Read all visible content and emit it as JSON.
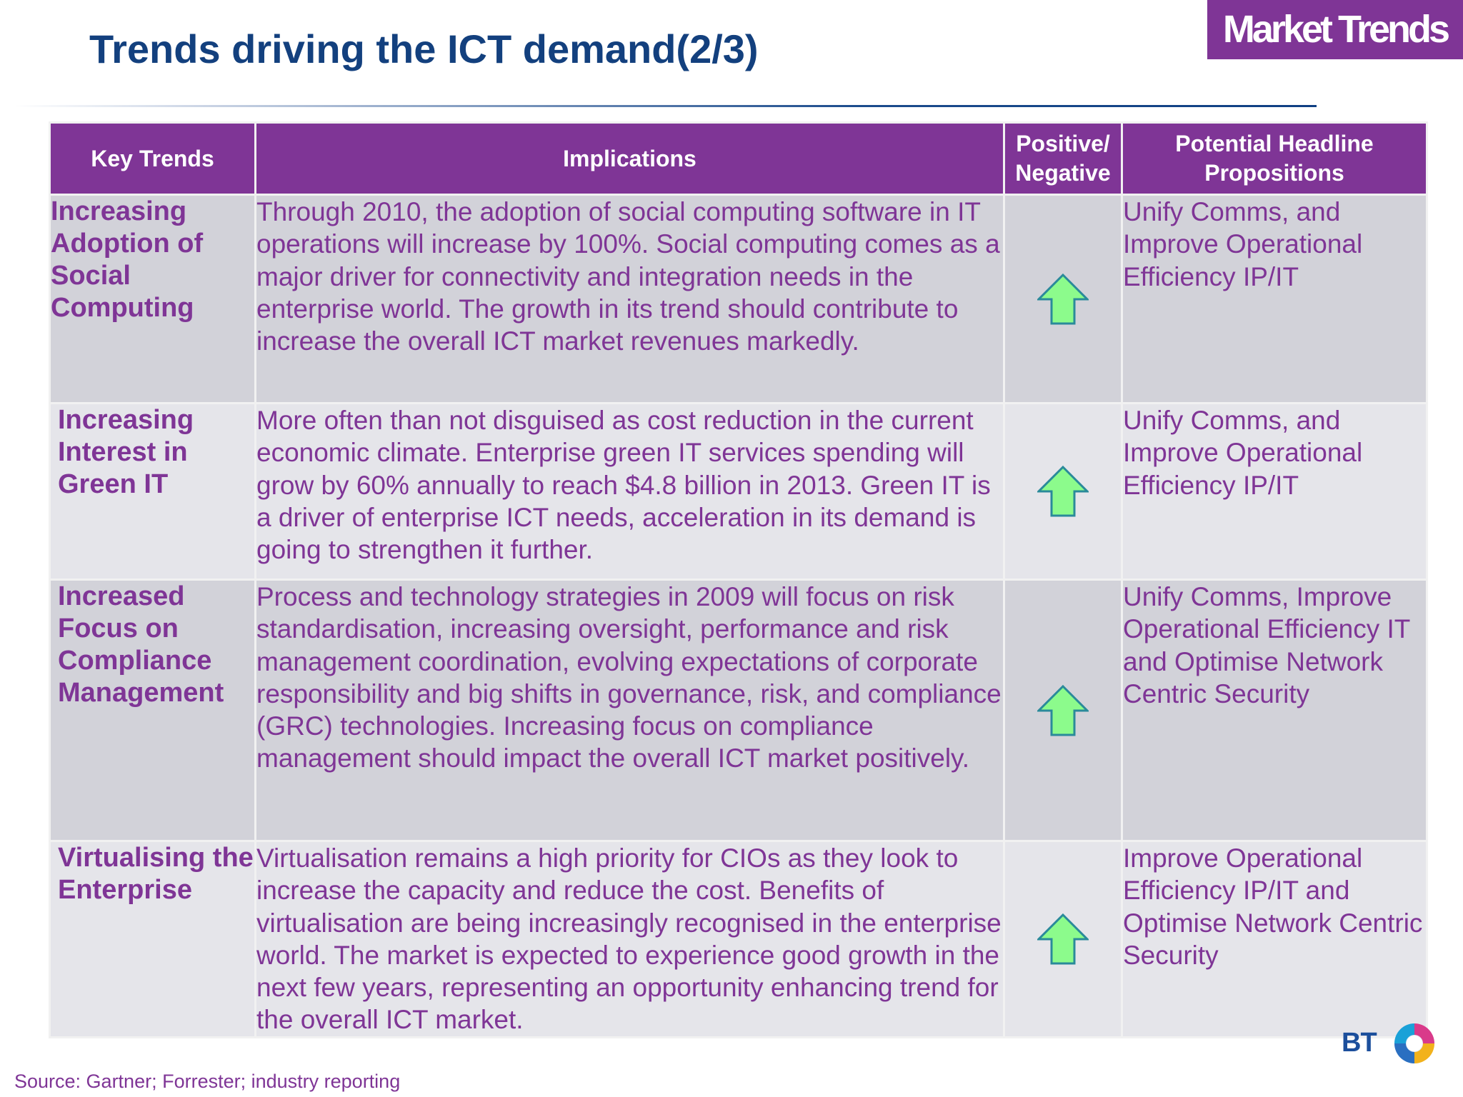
{
  "slide": {
    "title": "Trends driving the ICT demand(2/3)",
    "section_badge": "Market Trends",
    "source": "Source: Gartner; Forrester; industry reporting",
    "logo_text": "BT"
  },
  "colors": {
    "title": "#13407e",
    "accent_purple": "#7f3596",
    "row_dark": "#d2d2d9",
    "row_light": "#e5e5ea",
    "arrow_fill": "#8cfb8c",
    "arrow_stroke": "#2a8a9a"
  },
  "table": {
    "headers": {
      "key_trends": "Key Trends",
      "implications": "Implications",
      "positive_negative_1": "Positive/",
      "positive_negative_2": "Negative",
      "propositions_1": "Potential Headline",
      "propositions_2": "Propositions"
    },
    "rows": [
      {
        "trend": "Increasing Adoption of Social Computing",
        "implication": "Through 2010, the adoption of social computing software in IT operations will increase by 100%. Social computing comes as a major driver for connectivity and integration needs in the enterprise world. The growth in its trend should contribute to increase the overall ICT market revenues markedly.",
        "impact": "positive",
        "impact_icon": "green-up-arrow-icon",
        "proposition": "Unify Comms,  and Improve Operational Efficiency IP/IT"
      },
      {
        "trend": "Increasing Interest in Green IT",
        "implication": "More often than not disguised as cost reduction in the current economic climate. Enterprise green IT services spending will grow by 60% annually to reach $4.8 billion in 2013. Green IT is a driver of enterprise ICT needs, acceleration in its demand is going to strengthen it further.",
        "impact": "positive",
        "impact_icon": "green-up-arrow-icon",
        "proposition": "Unify Comms,  and Improve Operational Efficiency IP/IT"
      },
      {
        "trend": "Increased Focus on Compliance Management",
        "implication": "Process and technology strategies in 2009 will focus on risk standardisation, increasing oversight, performance and risk management coordination, evolving expectations of corporate responsibility and big shifts in governance, risk, and compliance (GRC) technologies. Increasing focus on compliance management should impact the overall ICT market positively.",
        "impact": "positive",
        "impact_icon": "green-up-arrow-icon",
        "proposition": "Unify Comms, Improve Operational Efficiency IT and Optimise Network Centric Security"
      },
      {
        "trend": "Virtualising the Enterprise",
        "implication": "Virtualisation remains a high priority for CIOs as they look to increase the capacity and reduce the cost. Benefits of virtualisation are being increasingly recognised in the enterprise world. The market is expected to experience good growth in the next few years, representing an opportunity enhancing trend for the overall ICT market.",
        "impact": "positive",
        "impact_icon": "green-up-arrow-icon",
        "proposition": "Improve Operational Efficiency IP/IT and Optimise Network Centric Security"
      }
    ]
  }
}
